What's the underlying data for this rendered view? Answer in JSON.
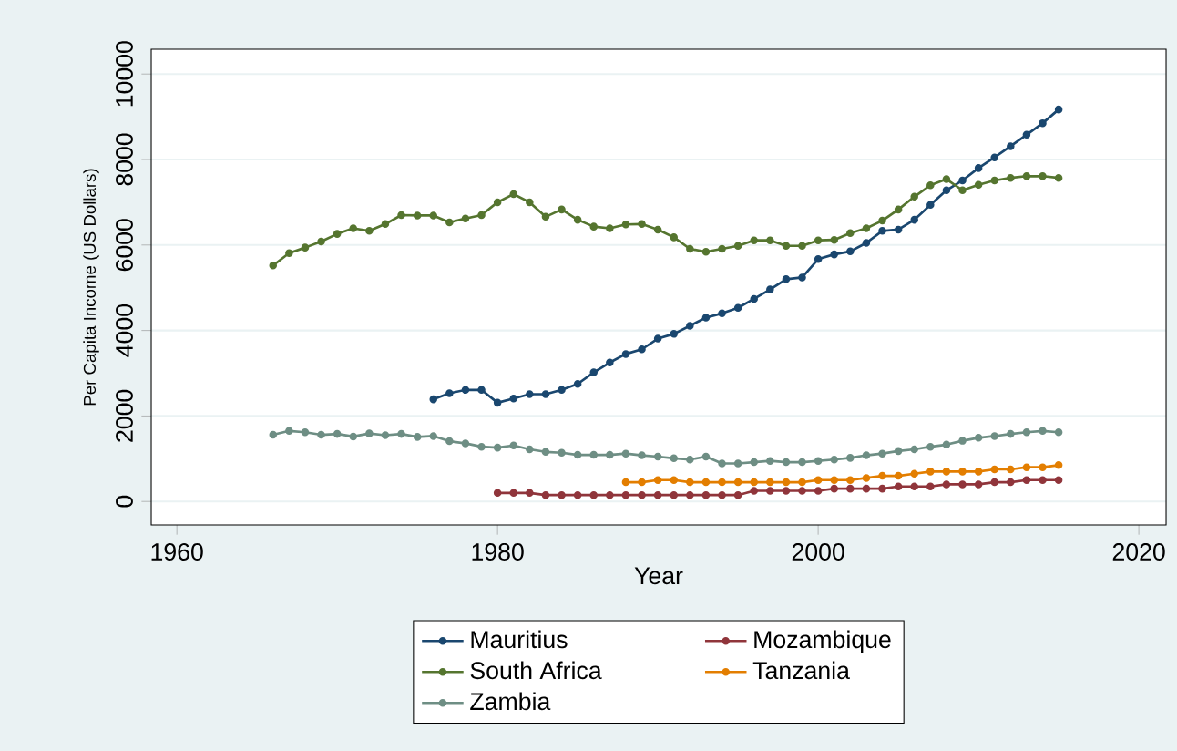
{
  "chart_data": {
    "type": "line",
    "xlabel": "Year",
    "ylabel": "Per Capita Income (US Dollars)",
    "xlim": [
      1958.4,
      2021.7
    ],
    "ylim": [
      -550,
      10580
    ],
    "xticks": [
      1960,
      1980,
      2000,
      2020
    ],
    "yticks": [
      0,
      2000,
      4000,
      6000,
      8000,
      10000
    ],
    "grid": "y",
    "legend": "bottom",
    "marker": "circle",
    "line_style": "solid",
    "series": [
      {
        "name": "Mauritius",
        "color": "#1a476f",
        "x": [
          1976,
          1977,
          1978,
          1979,
          1980,
          1981,
          1982,
          1983,
          1984,
          1985,
          1986,
          1987,
          1988,
          1989,
          1990,
          1991,
          1992,
          1993,
          1994,
          1995,
          1996,
          1997,
          1998,
          1999,
          2000,
          2001,
          2002,
          2003,
          2004,
          2005,
          2006,
          2007,
          2008,
          2009,
          2010,
          2011,
          2012,
          2013,
          2014,
          2015
        ],
        "values": [
          2390,
          2530,
          2610,
          2610,
          2310,
          2410,
          2510,
          2510,
          2610,
          2750,
          3020,
          3250,
          3450,
          3560,
          3810,
          3920,
          4110,
          4300,
          4400,
          4530,
          4740,
          4960,
          5200,
          5240,
          5670,
          5780,
          5850,
          6050,
          6330,
          6360,
          6590,
          6940,
          7280,
          7510,
          7800,
          8050,
          8310,
          8580,
          8850,
          9170
        ]
      },
      {
        "name": "Mozambique",
        "color": "#90353b",
        "x": [
          1980,
          1981,
          1982,
          1983,
          1984,
          1985,
          1986,
          1987,
          1988,
          1989,
          1990,
          1991,
          1992,
          1993,
          1994,
          1995,
          1996,
          1997,
          1998,
          1999,
          2000,
          2001,
          2002,
          2003,
          2004,
          2005,
          2006,
          2007,
          2008,
          2009,
          2010,
          2011,
          2012,
          2013,
          2014,
          2015
        ],
        "values": [
          200,
          200,
          200,
          150,
          150,
          150,
          150,
          150,
          150,
          150,
          150,
          150,
          150,
          150,
          150,
          150,
          250,
          250,
          250,
          250,
          250,
          300,
          300,
          300,
          300,
          350,
          350,
          350,
          400,
          400,
          400,
          450,
          450,
          500,
          500,
          500
        ]
      },
      {
        "name": "South Africa",
        "color": "#55752f",
        "x": [
          1966,
          1967,
          1968,
          1969,
          1970,
          1971,
          1972,
          1973,
          1974,
          1975,
          1976,
          1977,
          1978,
          1979,
          1980,
          1981,
          1982,
          1983,
          1984,
          1985,
          1986,
          1987,
          1988,
          1989,
          1990,
          1991,
          1992,
          1993,
          1994,
          1995,
          1996,
          1997,
          1998,
          1999,
          2000,
          2001,
          2002,
          2003,
          2004,
          2005,
          2006,
          2007,
          2008,
          2009,
          2010,
          2011,
          2012,
          2013,
          2014,
          2015
        ],
        "values": [
          5520,
          5810,
          5940,
          6080,
          6260,
          6390,
          6330,
          6490,
          6700,
          6690,
          6690,
          6530,
          6620,
          6700,
          7000,
          7190,
          7000,
          6660,
          6830,
          6590,
          6430,
          6390,
          6480,
          6490,
          6360,
          6180,
          5910,
          5840,
          5910,
          5980,
          6110,
          6110,
          5980,
          5980,
          6110,
          6120,
          6280,
          6390,
          6570,
          6830,
          7130,
          7400,
          7540,
          7280,
          7410,
          7510,
          7570,
          7610,
          7610,
          7570
        ]
      },
      {
        "name": "Tanzania",
        "color": "#e37e00",
        "x": [
          1988,
          1989,
          1990,
          1991,
          1992,
          1993,
          1994,
          1995,
          1996,
          1997,
          1998,
          1999,
          2000,
          2001,
          2002,
          2003,
          2004,
          2005,
          2006,
          2007,
          2008,
          2009,
          2010,
          2011,
          2012,
          2013,
          2014,
          2015
        ],
        "values": [
          450,
          450,
          500,
          500,
          450,
          450,
          450,
          450,
          450,
          450,
          450,
          450,
          500,
          500,
          500,
          550,
          600,
          600,
          650,
          700,
          700,
          700,
          700,
          750,
          750,
          800,
          800,
          850
        ]
      },
      {
        "name": "Zambia",
        "color": "#6e8e84",
        "x": [
          1966,
          1967,
          1968,
          1969,
          1970,
          1971,
          1972,
          1973,
          1974,
          1975,
          1976,
          1977,
          1978,
          1979,
          1980,
          1981,
          1982,
          1983,
          1984,
          1985,
          1986,
          1987,
          1988,
          1989,
          1990,
          1991,
          1992,
          1993,
          1994,
          1995,
          1996,
          1997,
          1998,
          1999,
          2000,
          2001,
          2002,
          2003,
          2004,
          2005,
          2006,
          2007,
          2008,
          2009,
          2010,
          2011,
          2012,
          2013,
          2014,
          2015
        ],
        "values": [
          1560,
          1650,
          1620,
          1560,
          1580,
          1520,
          1590,
          1550,
          1580,
          1510,
          1530,
          1410,
          1360,
          1280,
          1260,
          1310,
          1220,
          1160,
          1140,
          1090,
          1090,
          1090,
          1120,
          1080,
          1050,
          1010,
          980,
          1050,
          890,
          890,
          920,
          950,
          920,
          920,
          950,
          980,
          1020,
          1080,
          1120,
          1180,
          1220,
          1280,
          1330,
          1420,
          1490,
          1530,
          1580,
          1620,
          1650,
          1620
        ]
      }
    ]
  }
}
